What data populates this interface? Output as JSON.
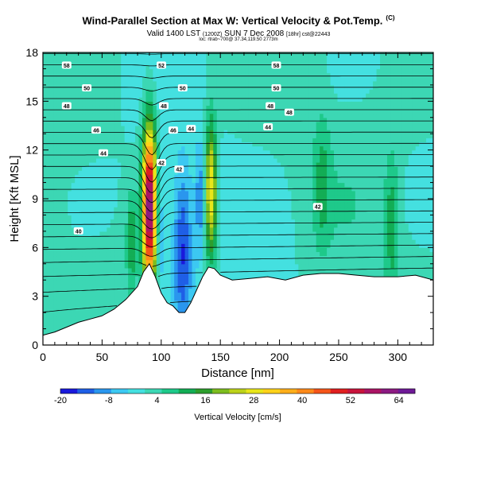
{
  "title": {
    "main": "Wind-Parallel Section at Max W: Vertical Velocity & Pot.Temp.",
    "copyright": "(C)",
    "valid_prefix": "Valid 1400 LST",
    "valid_utc": "(1200Z)",
    "valid_day": "SUN 7 Dec 2008",
    "run": "[18hr] cst@22443",
    "location": "loc: rtrab~700@ 37.34,119.50 2773m"
  },
  "chart_data": {
    "type": "heatmap",
    "title": "Wind-Parallel Section at Max W: Vertical Velocity & Pot.Temp.",
    "xlabel": "Distance [nm]",
    "ylabel": "Height [Kft MSL]",
    "xlim": [
      0,
      330
    ],
    "ylim": [
      0,
      18
    ],
    "x_ticks": [
      0,
      50,
      100,
      150,
      200,
      250,
      300
    ],
    "y_ticks": [
      0,
      3,
      6,
      9,
      12,
      15,
      18
    ],
    "colorbar": {
      "label": "Vertical Velocity [cm/s]",
      "ticks": [
        "-20",
        "-8",
        "4",
        "16",
        "28",
        "40",
        "52",
        "64"
      ],
      "min": -20,
      "max": 68,
      "colors": [
        "#1a1adc",
        "#1f5fe6",
        "#2a96ee",
        "#3cc8f2",
        "#44e0e0",
        "#3cd7b4",
        "#1ec98a",
        "#13ad55",
        "#2d9e2d",
        "#7dbd1e",
        "#bcd21a",
        "#e8e61a",
        "#ffd21a",
        "#ffae1a",
        "#ff8a1a",
        "#f5551a",
        "#e01f1f",
        "#c8143c",
        "#aa1464",
        "#8c1a82",
        "#6e1a96"
      ]
    },
    "contour_labels": [
      "58",
      "52",
      "58",
      "50",
      "50",
      "50",
      "48",
      "48",
      "48",
      "48",
      "46",
      "46",
      "44",
      "44",
      "44",
      "42",
      "42",
      "40",
      "42"
    ],
    "terrain": [
      [
        0,
        0.6
      ],
      [
        10,
        0.8
      ],
      [
        20,
        1.1
      ],
      [
        30,
        1.4
      ],
      [
        40,
        1.6
      ],
      [
        50,
        1.8
      ],
      [
        60,
        2.2
      ],
      [
        70,
        2.8
      ],
      [
        80,
        3.6
      ],
      [
        85,
        4.5
      ],
      [
        90,
        5.0
      ],
      [
        95,
        4.2
      ],
      [
        100,
        3.2
      ],
      [
        105,
        2.6
      ],
      [
        110,
        2.4
      ],
      [
        115,
        2.0
      ],
      [
        120,
        2.0
      ],
      [
        125,
        2.6
      ],
      [
        130,
        3.4
      ],
      [
        135,
        4.2
      ],
      [
        140,
        4.8
      ],
      [
        145,
        4.7
      ],
      [
        150,
        4.3
      ],
      [
        160,
        4.0
      ],
      [
        175,
        4.1
      ],
      [
        190,
        4.2
      ],
      [
        205,
        4.0
      ],
      [
        220,
        4.3
      ],
      [
        235,
        4.4
      ],
      [
        250,
        4.4
      ],
      [
        265,
        4.3
      ],
      [
        280,
        4.2
      ],
      [
        300,
        4.2
      ],
      [
        315,
        4.3
      ],
      [
        330,
        4.0
      ]
    ],
    "updraft_features": [
      {
        "x": 90,
        "y": 8.5,
        "sx": 4,
        "sy": 3.5,
        "value": 62
      },
      {
        "x": 142,
        "y": 9.5,
        "sx": 3.5,
        "sy": 3,
        "value": 30
      },
      {
        "x": 75,
        "y": 6.5,
        "sx": 3,
        "sy": 2,
        "value": 12
      },
      {
        "x": 295,
        "y": 7.5,
        "sx": 4,
        "sy": 3,
        "value": 10
      },
      {
        "x": 236,
        "y": 10,
        "sx": 5,
        "sy": 3,
        "value": 8
      }
    ],
    "downdraft_features": [
      {
        "x": 118,
        "y": 6,
        "sx": 6,
        "sy": 3.5,
        "value": -18
      },
      {
        "x": 100,
        "y": 7,
        "sx": 3,
        "sy": 2.5,
        "value": -10
      },
      {
        "x": 133,
        "y": 9,
        "sx": 3,
        "sy": 2.5,
        "value": -12
      }
    ]
  }
}
